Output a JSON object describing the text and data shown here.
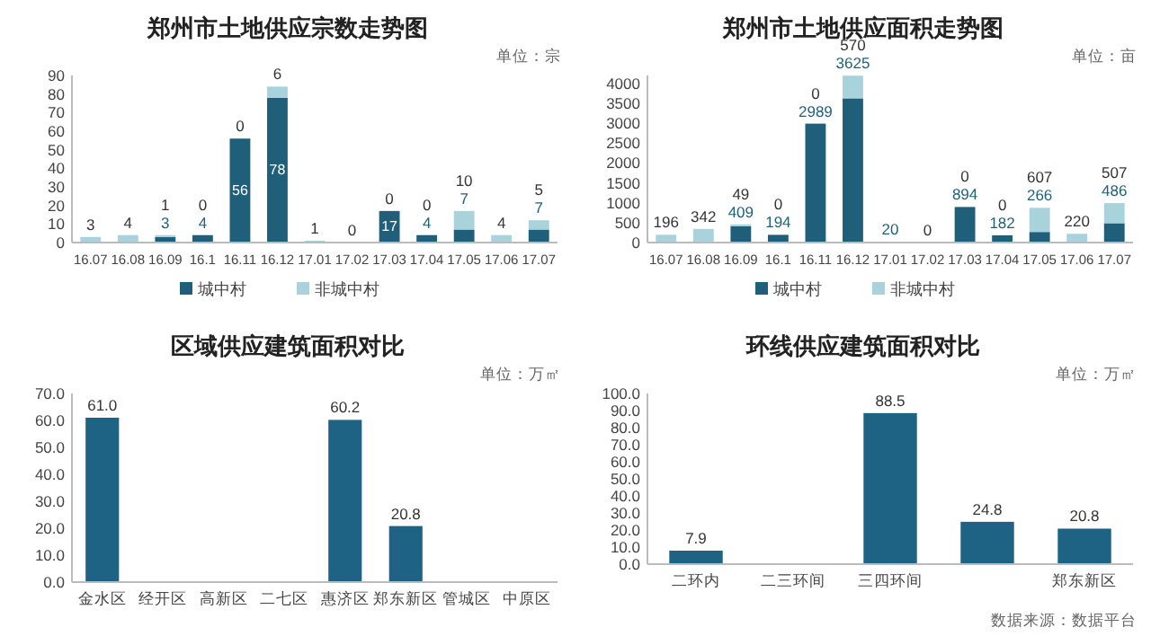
{
  "chart_data": [
    {
      "type": "bar",
      "title": "郑州市土地供应宗数走势图",
      "annotations": [
        "单位：宗"
      ],
      "categories": [
        "16.07",
        "16.08",
        "16.09",
        "16.1",
        "16.11",
        "16.12",
        "17.01",
        "17.02",
        "17.03",
        "17.04",
        "17.05",
        "17.06",
        "17.07"
      ],
      "stacked": true,
      "legend": "bottom",
      "ylim": [
        0,
        90
      ],
      "yticks": [
        0,
        10,
        20,
        30,
        40,
        50,
        60,
        70,
        80,
        90
      ],
      "series": [
        {
          "name": "城中村",
          "color": "#1f5f7a",
          "values": [
            0,
            0,
            3,
            4,
            56,
            78,
            0,
            0,
            17,
            4,
            7,
            0,
            7
          ],
          "value_labels": [
            null,
            null,
            "3",
            "4",
            "56",
            "78",
            null,
            null,
            "17",
            "4",
            "7",
            null,
            "7"
          ]
        },
        {
          "name": "非城中村",
          "color": "#a9d3dc",
          "values": [
            3,
            4,
            1,
            0,
            0,
            6,
            1,
            0,
            0,
            0,
            10,
            4,
            5
          ],
          "value_labels": [
            "3",
            "4",
            "1",
            "0",
            "0",
            "6",
            "1",
            "0",
            "0",
            "0",
            "10",
            "4",
            "5"
          ]
        }
      ]
    },
    {
      "type": "bar",
      "title": "郑州市土地供应面积走势图",
      "annotations": [
        "单位：亩"
      ],
      "categories": [
        "16.07",
        "16.08",
        "16.09",
        "16.1",
        "16.11",
        "16.12",
        "17.01",
        "17.02",
        "17.03",
        "17.04",
        "17.05",
        "17.06",
        "17.07"
      ],
      "stacked": true,
      "legend": "bottom",
      "ylim": [
        0,
        4200
      ],
      "yticks": [
        0,
        500,
        1000,
        1500,
        2000,
        2500,
        3000,
        3500,
        4000
      ],
      "series": [
        {
          "name": "城中村",
          "color": "#1f5f7a",
          "values": [
            0,
            0,
            409,
            194,
            2989,
            3625,
            20,
            0,
            894,
            182,
            266,
            0,
            486
          ],
          "value_labels": [
            null,
            null,
            "409",
            "194",
            "2989",
            "3625",
            "20",
            null,
            "894",
            "182",
            "266",
            null,
            "486"
          ]
        },
        {
          "name": "非城中村",
          "color": "#a9d3dc",
          "values": [
            196,
            342,
            49,
            0,
            0,
            570,
            0,
            0,
            0,
            0,
            607,
            220,
            507
          ],
          "value_labels": [
            "196",
            "342",
            "49",
            "0",
            "0",
            "570",
            null,
            "0",
            "0",
            "0",
            "607",
            "220",
            "507"
          ]
        }
      ]
    },
    {
      "type": "bar",
      "title": "区域供应建筑面积对比",
      "annotations": [
        "单位：万㎡"
      ],
      "categories": [
        "金水区",
        "经开区",
        "高新区",
        "二七区",
        "惠济区",
        "郑东新区",
        "管城区",
        "中原区"
      ],
      "color": "#1f6384",
      "values": [
        61.0,
        0,
        0,
        0,
        60.2,
        20.8,
        0,
        0
      ],
      "value_labels": [
        "61.0",
        null,
        null,
        null,
        "60.2",
        "20.8",
        null,
        null
      ],
      "ylim": [
        0,
        70
      ],
      "yticks": [
        {
          "value": 0,
          "label": "0.0"
        },
        {
          "value": 10,
          "label": "10.0"
        },
        {
          "value": 20,
          "label": "20.0"
        },
        {
          "value": 30,
          "label": "30.0"
        },
        {
          "value": 40,
          "label": "40.0"
        },
        {
          "value": 50,
          "label": "50.0"
        },
        {
          "value": 60,
          "label": "60.0"
        },
        {
          "value": 70,
          "label": "70.0"
        }
      ]
    },
    {
      "type": "bar",
      "title": "环线供应建筑面积对比",
      "annotations": [
        "单位：万㎡",
        "数据来源：数据平台"
      ],
      "categories": [
        "二环内",
        "二三环间",
        "三四环间",
        null,
        "郑东新区"
      ],
      "color": "#1f6384",
      "values": [
        7.9,
        0,
        88.5,
        24.8,
        20.8
      ],
      "value_labels": [
        "7.9",
        null,
        "88.5",
        "24.8",
        "20.8"
      ],
      "ylim": [
        0,
        100
      ],
      "yticks": [
        {
          "value": 0,
          "label": "0.0"
        },
        {
          "value": 10,
          "label": "10.0"
        },
        {
          "value": 20,
          "label": "20.0"
        },
        {
          "value": 30,
          "label": "30.0"
        },
        {
          "value": 40,
          "label": "40.0"
        },
        {
          "value": 50,
          "label": "50.0"
        },
        {
          "value": 60,
          "label": "60.0"
        },
        {
          "value": 70,
          "label": "70.0"
        },
        {
          "value": 80,
          "label": "80.0"
        },
        {
          "value": 90,
          "label": "90.0"
        },
        {
          "value": 100,
          "label": "100.0"
        }
      ]
    }
  ]
}
